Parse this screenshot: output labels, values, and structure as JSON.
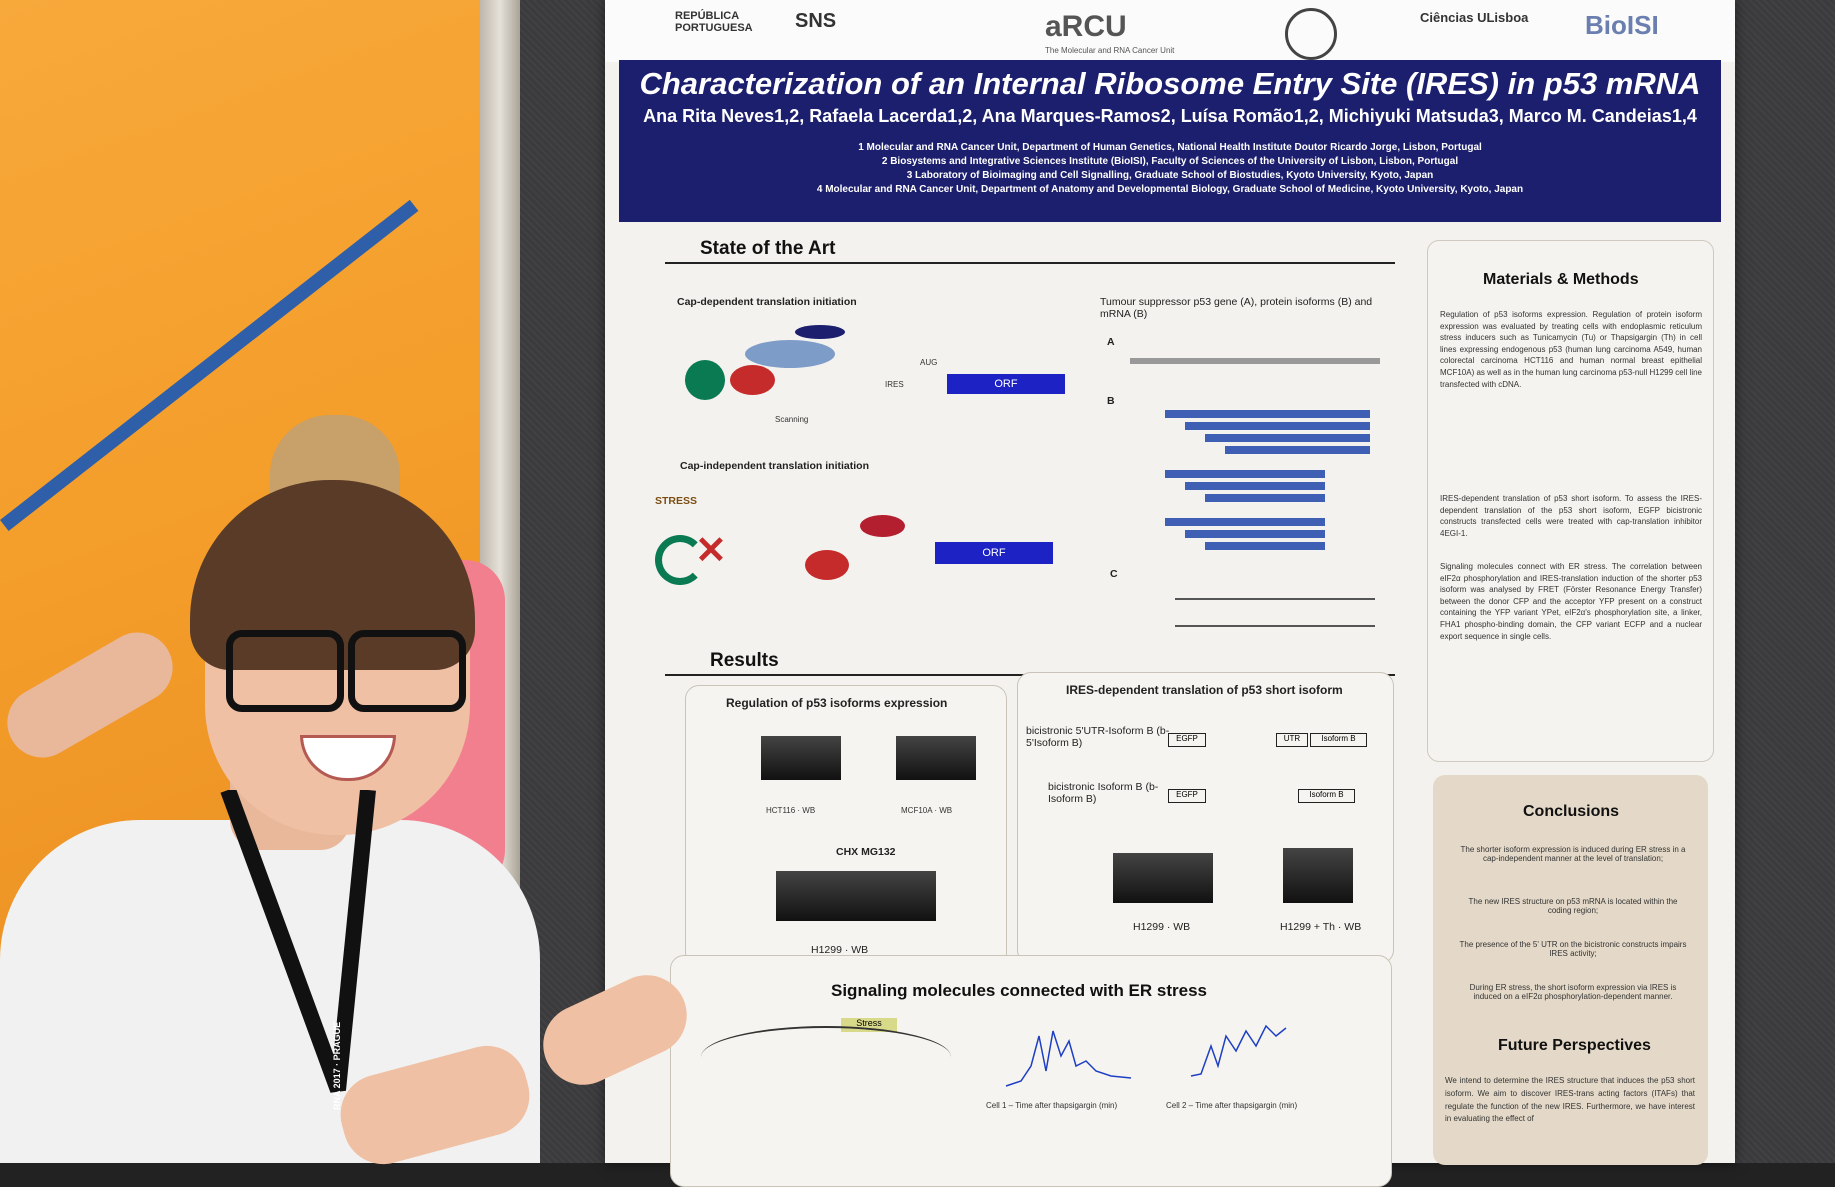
{
  "logos": {
    "republica": "REPÚBLICA PORTUGUESA",
    "sns": "SNS",
    "arcu": "aRCU",
    "arcu_sub": "The Molecular and RNA Cancer Unit",
    "ciencias": "Ciências ULisboa",
    "biosi": "BioISI"
  },
  "poster": {
    "title": "Characterization of an Internal Ribosome Entry Site (IRES) in p53 mRNA",
    "authors": "Ana Rita Neves1,2, Rafaela Lacerda1,2, Ana Marques-Ramos2, Luísa Romão1,2, Michiyuki Matsuda3, Marco M. Candeias1,4",
    "affiliations": [
      "1 Molecular and RNA Cancer Unit, Department of Human Genetics, National Health Institute Doutor Ricardo Jorge, Lisbon, Portugal",
      "2 Biosystems and Integrative Sciences Institute (BioISI), Faculty of Sciences of the University of Lisbon, Lisbon, Portugal",
      "3 Laboratory of Bioimaging and Cell Signalling, Graduate School of Biostudies, Kyoto University, Kyoto, Japan",
      "4 Molecular and RNA Cancer Unit, Department of Anatomy and Developmental Biology, Graduate School of Medicine, Kyoto University, Kyoto, Japan"
    ],
    "state_of_art": {
      "heading": "State of the Art",
      "cap_dep": "Cap-dependent translation initiation",
      "cap_indep": "Cap-independent translation initiation",
      "tumour": "Tumour suppressor p53 gene (A), protein isoforms (B) and mRNA (B)",
      "stress": "STRESS",
      "orf": "ORF",
      "aug": "AUG",
      "ires": "IRES",
      "scanning": "Scanning",
      "labels": {
        "a": "A",
        "b": "B",
        "c": "C"
      }
    },
    "results": {
      "heading": "Results",
      "panel1_title": "Regulation of p53 isoforms expression",
      "panel2_title": "IRES-dependent translation of p53 short isoform",
      "hct": "HCT116 · WB",
      "mcf": "MCF10A · WB",
      "h1299": "H1299 · WB",
      "h1299_th": "H1299 + Th · WB",
      "lanes": "CHX   MG132",
      "construct1": "bicistronic 5'UTR-Isoform B (b-5'Isoform B)",
      "construct2": "bicistronic Isoform B (b-Isoform B)",
      "egfp": "EGFP",
      "utr": "UTR",
      "isoform_b": "Isoform B",
      "signal_title": "Signaling molecules connected with ER stress",
      "stress_box": "Stress",
      "cell1": "Cell 1 – Time after thapsigargin (min)",
      "cell2": "Cell 2 – Time after thapsigargin (min)"
    },
    "methods": {
      "heading": "Materials & Methods",
      "p1": "Regulation of p53 isoforms expression. Regulation of protein isoform expression was evaluated by treating cells with endoplasmic reticulum stress inducers such as Tunicamycin (Tu) or Thapsigargin (Th) in cell lines expressing endogenous p53 (human lung carcinoma A549, human colorectal carcinoma HCT116 and human normal breast epithelial MCF10A) as well as in the human lung carcinoma p53-null H1299 cell line transfected with cDNA.",
      "p2": "IRES-dependent translation of p53 short isoform. To assess the IRES-dependent translation of the p53 short isoform, EGFP bicistronic constructs transfected cells were treated with cap-translation inhibitor 4EGI-1.",
      "p3": "Signaling molecules connect with ER stress. The correlation between eIF2α phosphorylation and IRES-translation induction of the shorter p53 isoform was analysed by FRET (Förster Resonance Energy Transfer) between the donor CFP and the acceptor YFP present on a construct containing the YFP variant YPet, eIF2α's phosphorylation site, a linker, FHA1 phospho-binding domain, the CFP variant ECFP and a nuclear export sequence in single cells."
    },
    "conclusions": {
      "heading": "Conclusions",
      "items": [
        "The shorter isoform expression is induced during ER stress in a cap-independent manner at the level of translation;",
        "The new IRES structure on p53 mRNA is located within the coding region;",
        "The presence of the 5' UTR on the bicistronic constructs impairs IRES activity;",
        "During ER stress, the short isoform expression via IRES is induced on a eIF2α phosphorylation-dependent manner."
      ]
    },
    "future": {
      "heading": "Future Perspectives",
      "text": "We intend to determine the IRES structure that induces the p53 short isoform. We aim to discover IRES-trans acting factors (ITAFs) that regulate the function of the new IRES. Furthermore, we have interest in evaluating the effect of"
    }
  },
  "badge": {
    "lanyard_text": "RNA 2017 · PRAGUE"
  },
  "colors": {
    "wall": "#f49d2a",
    "banner": "#1c1f6e",
    "orf": "#1d22c4",
    "shirt_pink": "#f27f8e"
  }
}
